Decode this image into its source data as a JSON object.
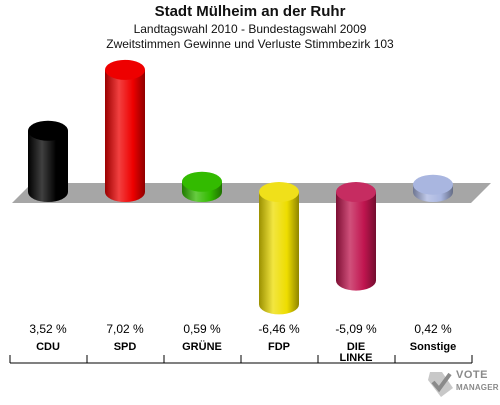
{
  "header": {
    "title": "Stadt Mülheim an der Ruhr",
    "subtitle": "Landtagswahl 2010 - Bundestagswahl 2009",
    "subtitle2": "Zweitstimmen Gewinne und Verluste Stimmbezirk 103"
  },
  "chart_data": {
    "type": "bar",
    "title": "Stadt Mülheim an der Ruhr",
    "subtitle": "Landtagswahl 2010 - Bundestagswahl 2009 / Zweitstimmen Gewinne und Verluste Stimmbezirk 103",
    "categories": [
      "CDU",
      "SPD",
      "GRÜNE",
      "FDP",
      "DIE LINKE",
      "Sonstige"
    ],
    "category_lines": [
      [
        "CDU"
      ],
      [
        "SPD"
      ],
      [
        "GRÜNE"
      ],
      [
        "FDP"
      ],
      [
        "DIE",
        "LINKE"
      ],
      [
        "Sonstige"
      ]
    ],
    "values": [
      3.52,
      7.02,
      0.59,
      -6.46,
      -5.09,
      0.42
    ],
    "value_labels": [
      "3,52 %",
      "7,02 %",
      "0,59 %",
      "-6,46 %",
      "-5,09 %",
      "0,42 %"
    ],
    "colors": [
      "#000000",
      "#ee0000",
      "#33bb00",
      "#eedd00",
      "#c0154f",
      "#a9b6e0"
    ],
    "unit": "%",
    "xlabel": "",
    "ylabel": ""
  },
  "logo": {
    "line1": "VOTE",
    "line2": "MANAGER"
  }
}
